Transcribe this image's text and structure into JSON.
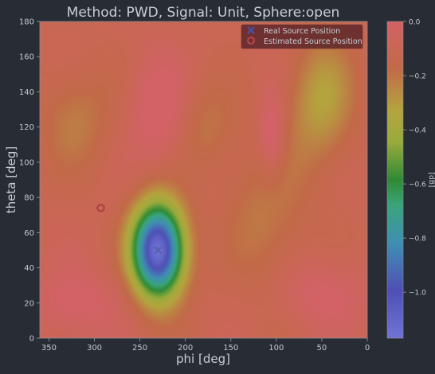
{
  "chart_data": {
    "type": "heatmap",
    "title": "Method: PWD, Signal: Unit, Sphere:open",
    "xlabel": "phi [deg]",
    "ylabel": "theta [deg]",
    "xlim": [
      360,
      0
    ],
    "ylim": [
      0,
      180
    ],
    "x_ticks": [
      350,
      300,
      250,
      200,
      150,
      100,
      50,
      0
    ],
    "y_ticks": [
      0,
      20,
      40,
      60,
      80,
      100,
      120,
      140,
      160,
      180
    ],
    "colorbar": {
      "label": "[dB]",
      "range": [
        -1.17,
        0.0
      ],
      "ticks": [
        0.0,
        -0.2,
        -0.4,
        -0.6,
        -0.8,
        -1.0
      ]
    },
    "legend": {
      "placement": "top-right",
      "entries": [
        {
          "label": "Real Source Position",
          "marker": "x",
          "color": "#4b4fa6"
        },
        {
          "label": "Estimated Source Position",
          "marker": "o",
          "color": "#c0484c"
        }
      ]
    },
    "markers": {
      "real_source": {
        "phi": 230,
        "theta": 50
      },
      "estimated_source": {
        "phi": 293,
        "theta": 74
      }
    },
    "field_features": [
      {
        "phi": 230,
        "theta": 50,
        "value": -1.17,
        "phi_width": 28,
        "theta_width": 26,
        "description_value": "minimum"
      },
      {
        "phi": 50,
        "theta": 135,
        "value": -0.32,
        "phi_width": 35,
        "theta_width": 35
      },
      {
        "phi": 320,
        "theta": 125,
        "value": -0.22,
        "phi_width": 40,
        "theta_width": 30
      },
      {
        "phi": 110,
        "theta": 70,
        "value": -0.22,
        "phi_width": 45,
        "theta_width": 45
      },
      {
        "phi": 175,
        "theta": 120,
        "value": -0.2,
        "phi_width": 30,
        "theta_width": 25
      },
      {
        "phi": 230,
        "theta": 130,
        "value": 0.05,
        "phi_width": 30,
        "theta_width": 30
      },
      {
        "phi": 105,
        "theta": 115,
        "value": 0.08,
        "phi_width": 15,
        "theta_width": 25
      },
      {
        "phi": 320,
        "theta": 20,
        "value": 0.02,
        "phi_width": 50,
        "theta_width": 20
      },
      {
        "phi": 50,
        "theta": 25,
        "value": 0.02,
        "phi_width": 50,
        "theta_width": 20
      }
    ]
  }
}
